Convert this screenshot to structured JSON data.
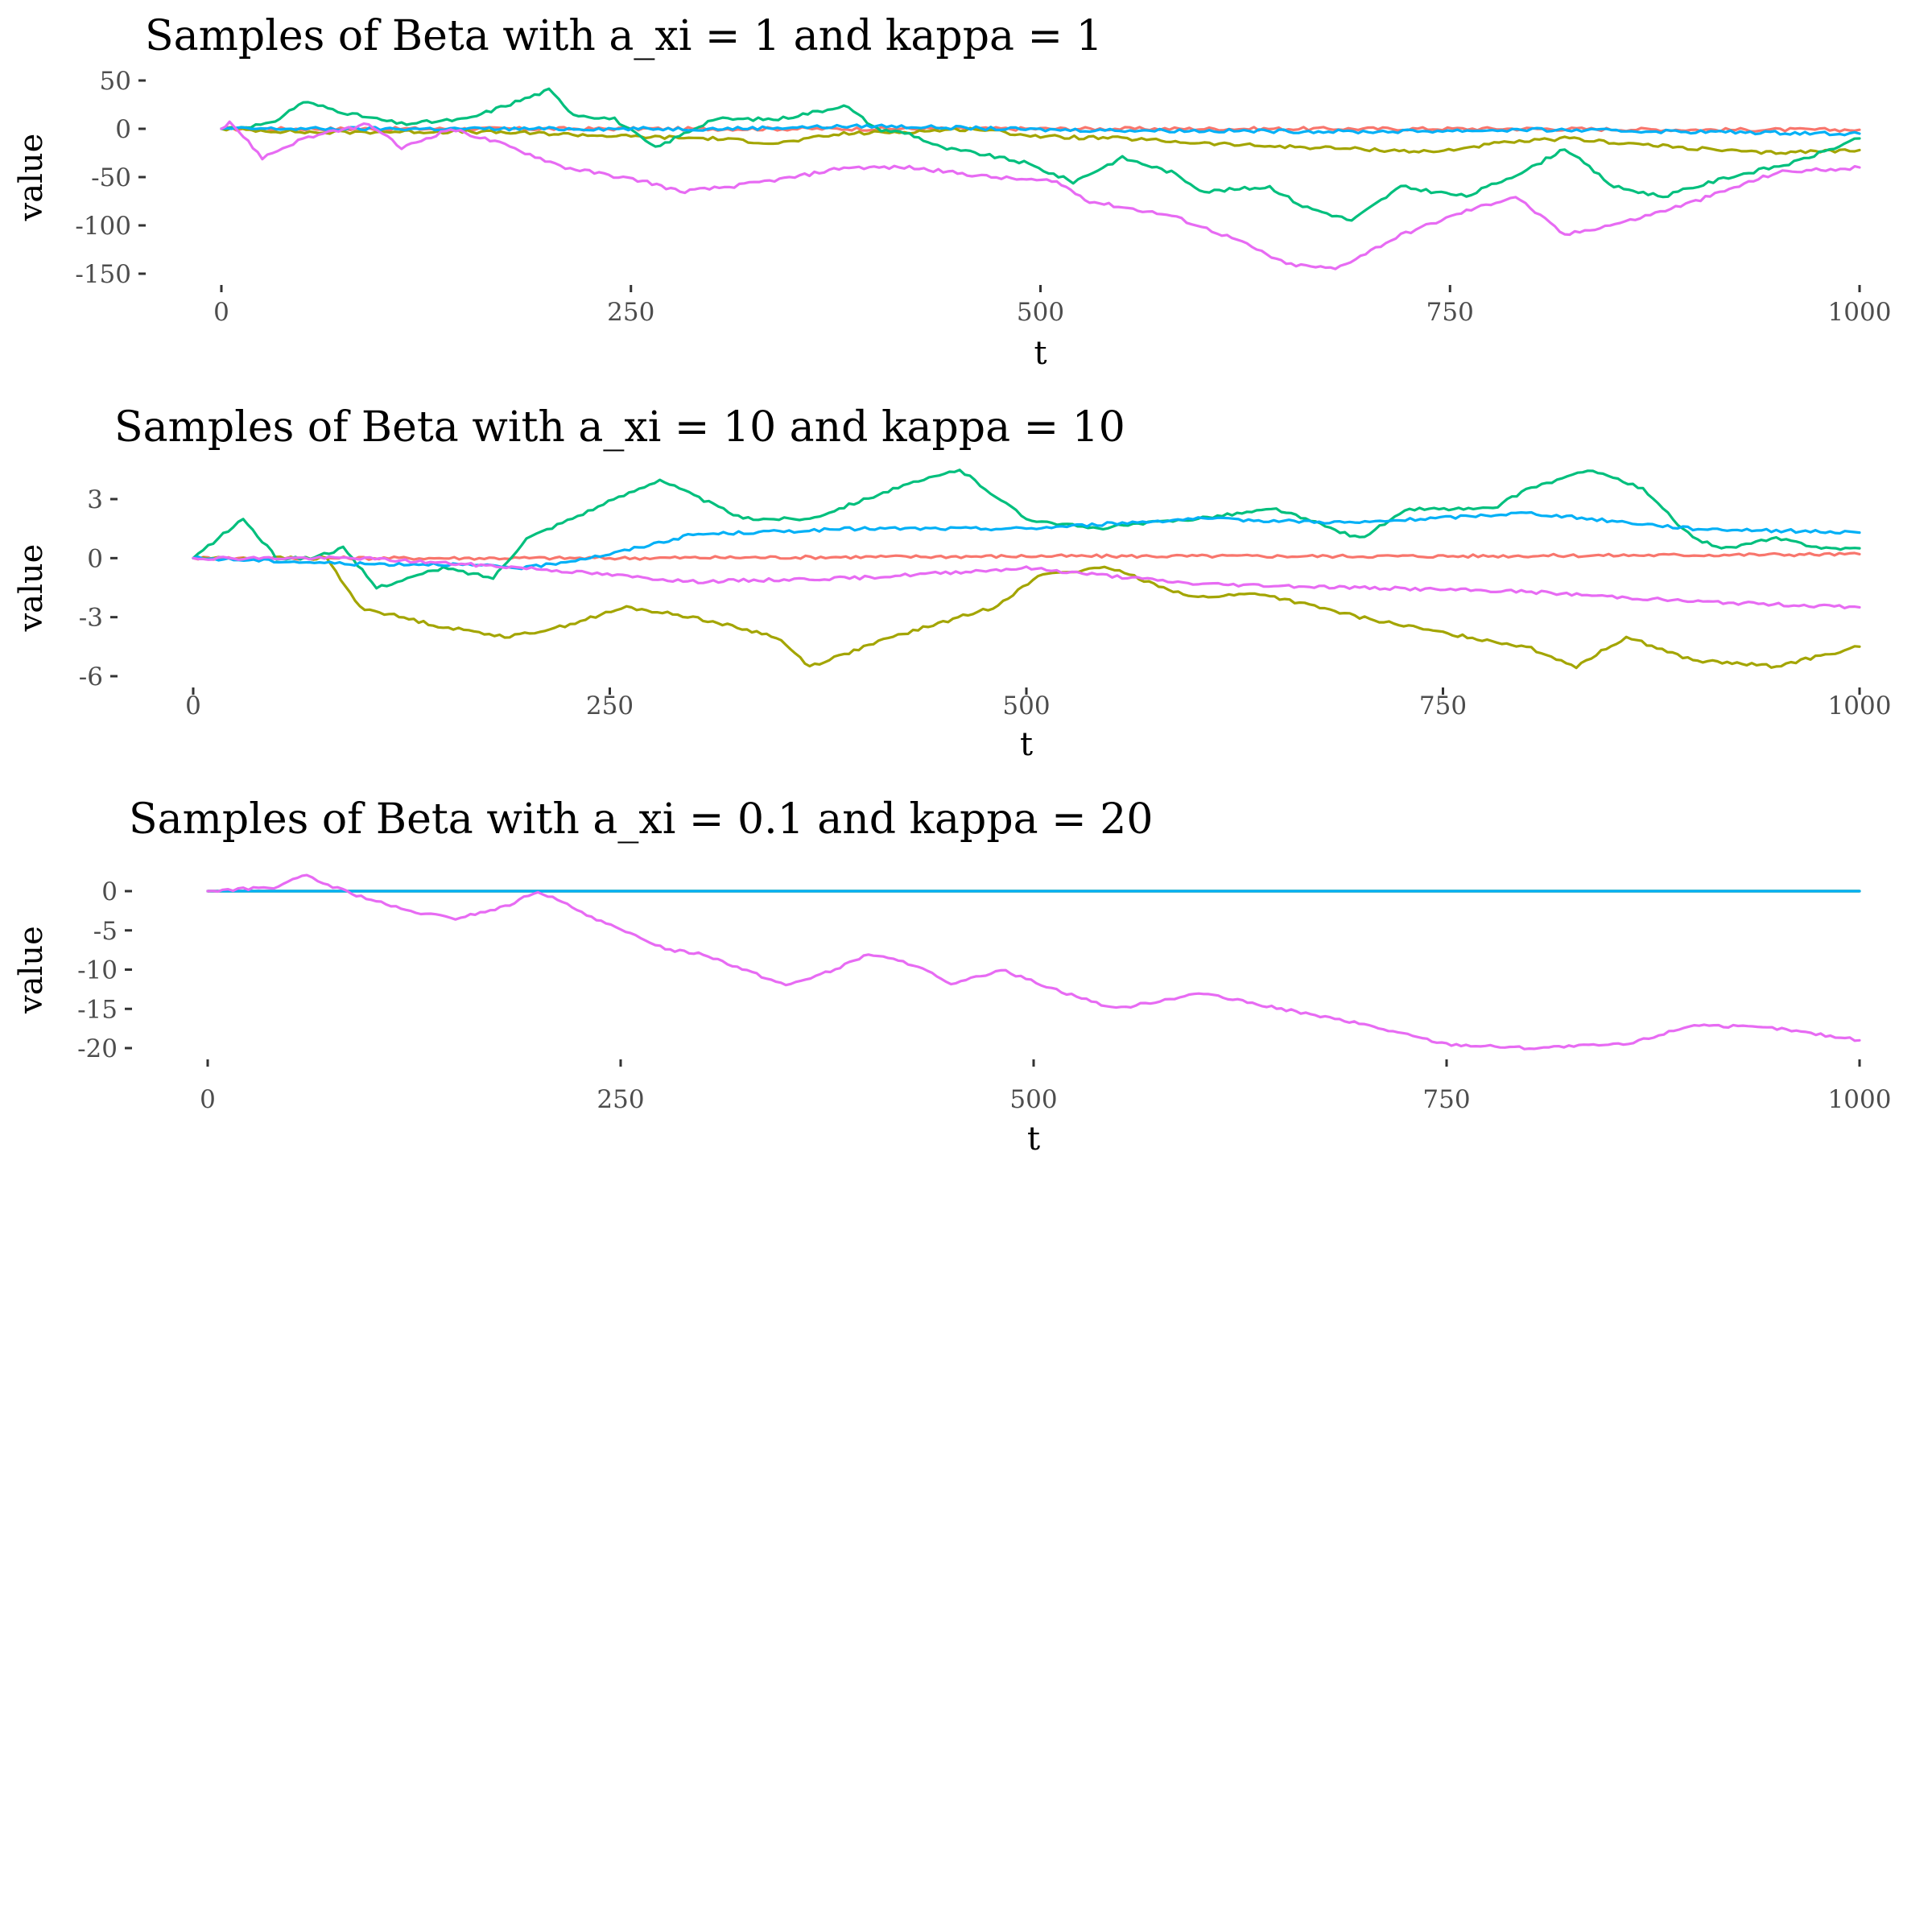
{
  "chart_data": [
    {
      "type": "line",
      "title": "Samples of Beta with a_xi = 1 and kappa = 1",
      "xlabel": "t",
      "ylabel": "value",
      "xlim": [
        0,
        1000
      ],
      "ylim": [
        -150,
        50
      ],
      "x_ticks": [
        "0",
        "250",
        "500",
        "750",
        "1000"
      ],
      "y_ticks": [
        "50",
        "0",
        "-50",
        "-100",
        "-150"
      ],
      "grid": false,
      "legend": "none",
      "series": [
        {
          "color": "#F8766D",
          "x": [
            0,
            100,
            200,
            300,
            400,
            500,
            600,
            700,
            800,
            900,
            1000
          ],
          "values": [
            0,
            0,
            0,
            0,
            0,
            0,
            0,
            0,
            0,
            -1,
            -1
          ]
        },
        {
          "color": "#A3A500",
          "x": [
            0,
            30,
            60,
            100,
            150,
            200,
            250,
            300,
            340,
            380,
            420,
            460,
            500,
            550,
            600,
            640,
            680,
            740,
            780,
            820,
            880,
            940,
            1000
          ],
          "values": [
            0,
            -2,
            -4,
            -3,
            -3,
            -5,
            -8,
            -10,
            -15,
            -5,
            -3,
            0,
            -8,
            -10,
            -15,
            -18,
            -20,
            -24,
            -15,
            -10,
            -18,
            -25,
            -22
          ]
        },
        {
          "color": "#00BF7D",
          "x": [
            0,
            30,
            50,
            80,
            110,
            150,
            200,
            215,
            240,
            265,
            300,
            340,
            370,
            380,
            400,
            420,
            440,
            460,
            490,
            520,
            550,
            580,
            600,
            640,
            660,
            690,
            720,
            760,
            800,
            820,
            850,
            880,
            920,
            960,
            1000
          ],
          "values": [
            0,
            5,
            28,
            15,
            5,
            10,
            40,
            15,
            10,
            -20,
            10,
            10,
            20,
            25,
            0,
            -5,
            -20,
            -25,
            -35,
            -55,
            -30,
            -45,
            -65,
            -60,
            -80,
            -95,
            -60,
            -70,
            -40,
            -20,
            -60,
            -70,
            -50,
            -35,
            -10
          ]
        },
        {
          "color": "#00B0F6",
          "x": [
            0,
            100,
            200,
            300,
            400,
            500,
            600,
            700,
            800,
            900,
            1000
          ],
          "values": [
            0,
            0,
            0,
            0,
            3,
            -1,
            -2,
            -3,
            -1,
            -3,
            -5
          ]
        },
        {
          "color": "#E76BF3",
          "x": [
            0,
            5,
            25,
            50,
            90,
            110,
            140,
            170,
            210,
            260,
            280,
            310,
            350,
            380,
            420,
            470,
            510,
            530,
            580,
            620,
            650,
            680,
            720,
            760,
            790,
            820,
            860,
            900,
            950,
            1000
          ],
          "values": [
            0,
            8,
            -30,
            -10,
            5,
            -20,
            0,
            -15,
            -40,
            -55,
            -65,
            -60,
            -50,
            -40,
            -40,
            -50,
            -55,
            -75,
            -90,
            -115,
            -140,
            -145,
            -110,
            -85,
            -70,
            -110,
            -95,
            -75,
            -45,
            -40
          ]
        }
      ]
    },
    {
      "type": "line",
      "title": "Samples of Beta with a_xi = 10 and kappa = 10",
      "xlabel": "t",
      "ylabel": "value",
      "xlim": [
        0,
        1000
      ],
      "ylim": [
        -6,
        3
      ],
      "x_ticks": [
        "0",
        "250",
        "500",
        "750",
        "1000"
      ],
      "y_ticks": [
        "3",
        "0",
        "-3",
        "-6"
      ],
      "grid": false,
      "legend": "none",
      "series": [
        {
          "color": "#F8766D",
          "x": [
            0,
            250,
            500,
            750,
            1000
          ],
          "values": [
            0,
            0,
            0.1,
            0.1,
            0.2
          ]
        },
        {
          "color": "#A3A500",
          "x": [
            0,
            40,
            80,
            100,
            150,
            190,
            220,
            260,
            300,
            350,
            370,
            420,
            480,
            510,
            550,
            600,
            640,
            700,
            750,
            800,
            830,
            860,
            900,
            950,
            1000
          ],
          "values": [
            0,
            0,
            0,
            -2.5,
            -3.5,
            -4,
            -3.5,
            -2.5,
            -3,
            -4,
            -5.5,
            -4,
            -2.5,
            -0.8,
            -0.5,
            -2,
            -1.8,
            -3,
            -3.8,
            -4.5,
            -5.5,
            -4,
            -5.2,
            -5.5,
            -4.5
          ]
        },
        {
          "color": "#00BF7D",
          "x": [
            0,
            30,
            50,
            70,
            90,
            110,
            150,
            180,
            200,
            240,
            280,
            330,
            370,
            420,
            460,
            500,
            540,
            600,
            650,
            700,
            730,
            780,
            800,
            840,
            870,
            900,
            920,
            950,
            980,
            1000
          ],
          "values": [
            0,
            2,
            0,
            0,
            0.5,
            -1.5,
            -0.5,
            -1,
            1,
            2.5,
            4,
            2,
            2,
            3.5,
            4.5,
            2,
            1.5,
            2,
            2.5,
            1,
            2.5,
            2.5,
            3.5,
            4.5,
            3.5,
            1,
            0.5,
            1,
            0.5,
            0.5
          ]
        },
        {
          "color": "#00B0F6",
          "x": [
            0,
            100,
            150,
            200,
            250,
            300,
            400,
            500,
            600,
            700,
            800,
            900,
            950,
            1000
          ],
          "values": [
            0,
            -0.3,
            -0.3,
            -0.5,
            0.2,
            1.2,
            1.5,
            1.5,
            2,
            1.8,
            2.3,
            1.5,
            1.4,
            1.3
          ]
        },
        {
          "color": "#E76BF3",
          "x": [
            0,
            100,
            200,
            300,
            400,
            500,
            600,
            700,
            800,
            900,
            1000
          ],
          "values": [
            0,
            0,
            -0.5,
            -1.2,
            -1,
            -0.5,
            -1.3,
            -1.5,
            -1.7,
            -2.2,
            -2.5
          ]
        }
      ]
    },
    {
      "type": "line",
      "title": "Samples of Beta with a_xi = 0.1 and kappa = 20",
      "xlabel": "t",
      "ylabel": "value",
      "xlim": [
        0,
        1000
      ],
      "ylim": [
        -20,
        0
      ],
      "x_ticks": [
        "0",
        "250",
        "500",
        "750",
        "1000"
      ],
      "y_ticks": [
        "0",
        "-5",
        "-10",
        "-15",
        "-20"
      ],
      "grid": false,
      "legend": "none",
      "series": [
        {
          "color": "#F8766D",
          "x": [
            0,
            1000
          ],
          "values": [
            0,
            0
          ]
        },
        {
          "color": "#A3A500",
          "x": [
            0,
            1000
          ],
          "values": [
            0,
            0
          ]
        },
        {
          "color": "#00BF7D",
          "x": [
            0,
            1000
          ],
          "values": [
            0,
            0
          ]
        },
        {
          "color": "#00B0F6",
          "x": [
            0,
            1000
          ],
          "values": [
            0,
            0
          ]
        },
        {
          "color": "#E76BF3",
          "x": [
            0,
            40,
            60,
            70,
            90,
            120,
            150,
            180,
            200,
            250,
            280,
            300,
            350,
            380,
            400,
            430,
            450,
            480,
            520,
            550,
            600,
            650,
            700,
            750,
            800,
            860,
            900,
            950,
            1000
          ],
          "values": [
            0,
            0.5,
            2,
            1,
            -0.5,
            -2.5,
            -3.5,
            -2,
            0,
            -5,
            -7.5,
            -8,
            -12,
            -10,
            -8,
            -9.5,
            -12,
            -10,
            -13,
            -15,
            -13,
            -15,
            -17,
            -19.5,
            -20,
            -19.5,
            -17,
            -17.5,
            -19
          ]
        }
      ]
    }
  ]
}
